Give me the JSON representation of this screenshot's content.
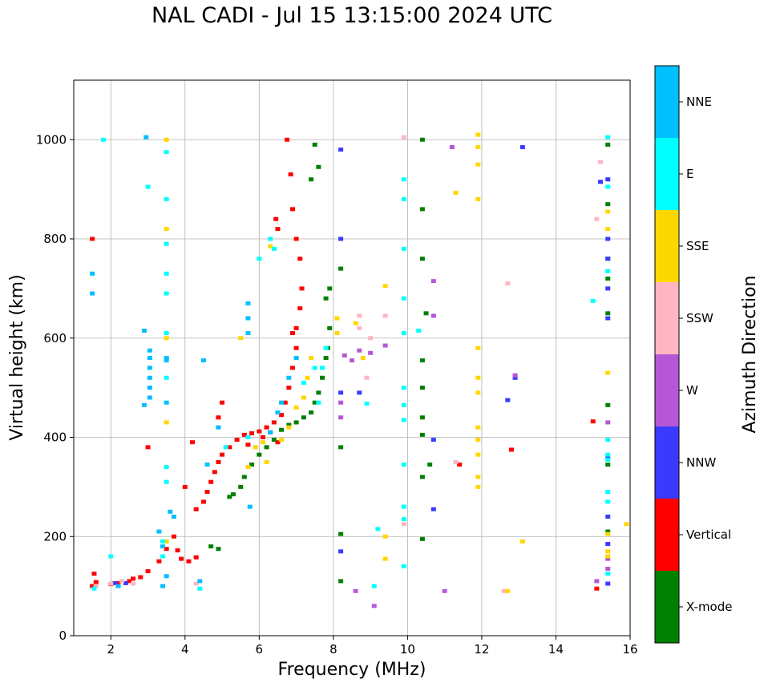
{
  "chart_data": {
    "type": "scatter",
    "title": "NAL CADI - Jul 15 13:15:00 2024 UTC",
    "xlabel": "Frequency (MHz)",
    "ylabel": "Virtual height (km)",
    "xlim": [
      1,
      16
    ],
    "ylim": [
      0,
      1120
    ],
    "xticks": [
      2,
      4,
      6,
      8,
      10,
      12,
      14,
      16
    ],
    "yticks": [
      0,
      200,
      400,
      600,
      800,
      1000
    ],
    "grid": true,
    "colorbar": {
      "label": "Azimuth Direction",
      "categories": [
        {
          "name": "X-mode",
          "color": "#008000"
        },
        {
          "name": "Vertical",
          "color": "#ff0000"
        },
        {
          "name": "NNW",
          "color": "#3a3aff"
        },
        {
          "name": "W",
          "color": "#b658d6"
        },
        {
          "name": "SSW",
          "color": "#ffb6c1"
        },
        {
          "name": "SSE",
          "color": "#ffd700"
        },
        {
          "name": "E",
          "color": "#00ffff"
        },
        {
          "name": "NNE",
          "color": "#00bfff"
        }
      ]
    },
    "series": [
      {
        "name": "Vertical",
        "points": [
          [
            1.5,
            100
          ],
          [
            1.6,
            108
          ],
          [
            1.55,
            125
          ],
          [
            2.0,
            104
          ],
          [
            2.2,
            106
          ],
          [
            2.5,
            110
          ],
          [
            2.8,
            118
          ],
          [
            3.0,
            130
          ],
          [
            3.3,
            150
          ],
          [
            3.5,
            175
          ],
          [
            3.7,
            200
          ],
          [
            3.8,
            172
          ],
          [
            3.9,
            155
          ],
          [
            4.1,
            150
          ],
          [
            4.3,
            158
          ],
          [
            4.3,
            255
          ],
          [
            4.5,
            270
          ],
          [
            4.6,
            290
          ],
          [
            4.7,
            310
          ],
          [
            4.8,
            330
          ],
          [
            4.9,
            350
          ],
          [
            5.0,
            365
          ],
          [
            5.2,
            380
          ],
          [
            5.4,
            395
          ],
          [
            5.6,
            405
          ],
          [
            5.8,
            408
          ],
          [
            6.0,
            412
          ],
          [
            6.2,
            420
          ],
          [
            6.4,
            430
          ],
          [
            6.6,
            445
          ],
          [
            6.7,
            470
          ],
          [
            6.8,
            500
          ],
          [
            6.9,
            540
          ],
          [
            7.0,
            580
          ],
          [
            7.0,
            620
          ],
          [
            7.1,
            660
          ],
          [
            7.15,
            700
          ],
          [
            7.1,
            760
          ],
          [
            7.0,
            800
          ],
          [
            6.9,
            860
          ],
          [
            6.85,
            930
          ],
          [
            6.75,
            1000
          ],
          [
            6.5,
            820
          ],
          [
            6.45,
            840
          ],
          [
            4.2,
            390
          ],
          [
            4.9,
            440
          ],
          [
            5.0,
            470
          ],
          [
            2.6,
            115
          ],
          [
            1.5,
            800
          ],
          [
            4.0,
            300
          ],
          [
            12.8,
            375
          ],
          [
            11.4,
            345
          ],
          [
            15.1,
            95
          ],
          [
            15.0,
            432
          ],
          [
            3.0,
            380
          ],
          [
            6.3,
            410
          ],
          [
            6.5,
            390
          ],
          [
            5.7,
            385
          ],
          [
            6.1,
            400
          ],
          [
            6.9,
            610
          ]
        ]
      },
      {
        "name": "X-mode",
        "points": [
          [
            5.2,
            280
          ],
          [
            5.3,
            285
          ],
          [
            5.5,
            300
          ],
          [
            5.6,
            320
          ],
          [
            5.8,
            345
          ],
          [
            6.0,
            365
          ],
          [
            6.2,
            380
          ],
          [
            6.4,
            395
          ],
          [
            6.6,
            415
          ],
          [
            6.8,
            425
          ],
          [
            7.0,
            430
          ],
          [
            7.2,
            440
          ],
          [
            7.4,
            450
          ],
          [
            7.5,
            470
          ],
          [
            7.6,
            490
          ],
          [
            7.7,
            520
          ],
          [
            7.8,
            560
          ],
          [
            7.85,
            580
          ],
          [
            7.9,
            620
          ],
          [
            7.8,
            680
          ],
          [
            7.9,
            700
          ],
          [
            4.7,
            180
          ],
          [
            4.9,
            175
          ],
          [
            10.4,
            1000
          ],
          [
            10.4,
            860
          ],
          [
            10.4,
            760
          ],
          [
            10.5,
            650
          ],
          [
            10.4,
            555
          ],
          [
            10.4,
            500
          ],
          [
            10.4,
            440
          ],
          [
            10.4,
            405
          ],
          [
            10.4,
            320
          ],
          [
            10.6,
            345
          ],
          [
            15.4,
            990
          ],
          [
            15.4,
            870
          ],
          [
            15.4,
            760
          ],
          [
            15.4,
            720
          ],
          [
            15.4,
            650
          ],
          [
            15.4,
            465
          ],
          [
            15.4,
            345
          ],
          [
            15.4,
            210
          ],
          [
            8.2,
            380
          ],
          [
            8.2,
            205
          ],
          [
            8.2,
            110
          ],
          [
            8.2,
            740
          ],
          [
            7.5,
            990
          ],
          [
            7.6,
            945
          ],
          [
            7.4,
            920
          ],
          [
            10.4,
            195
          ]
        ]
      },
      {
        "name": "NNW",
        "points": [
          [
            2.1,
            106
          ],
          [
            2.4,
            106
          ],
          [
            8.2,
            980
          ],
          [
            8.2,
            800
          ],
          [
            8.2,
            490
          ],
          [
            8.2,
            170
          ],
          [
            8.7,
            490
          ],
          [
            13.1,
            985
          ],
          [
            12.7,
            475
          ],
          [
            12.9,
            520
          ],
          [
            15.4,
            800
          ],
          [
            15.4,
            760
          ],
          [
            15.4,
            700
          ],
          [
            15.4,
            640
          ],
          [
            15.4,
            240
          ],
          [
            15.4,
            185
          ],
          [
            15.4,
            105
          ],
          [
            15.4,
            920
          ],
          [
            10.7,
            395
          ],
          [
            10.7,
            255
          ],
          [
            15.2,
            915
          ],
          [
            15.4,
            360
          ]
        ]
      },
      {
        "name": "W",
        "points": [
          [
            8.3,
            565
          ],
          [
            8.5,
            555
          ],
          [
            8.7,
            575
          ],
          [
            9.0,
            570
          ],
          [
            9.4,
            585
          ],
          [
            8.2,
            470
          ],
          [
            8.2,
            440
          ],
          [
            8.6,
            90
          ],
          [
            10.7,
            645
          ],
          [
            10.7,
            715
          ],
          [
            15.4,
            430
          ],
          [
            15.4,
            155
          ],
          [
            15.4,
            135
          ],
          [
            15.1,
            110
          ],
          [
            11.0,
            90
          ],
          [
            9.1,
            60
          ],
          [
            12.9,
            525
          ],
          [
            11.2,
            985
          ]
        ]
      },
      {
        "name": "SSW",
        "points": [
          [
            1.6,
            100
          ],
          [
            2.0,
            105
          ],
          [
            2.3,
            110
          ],
          [
            2.6,
            105
          ],
          [
            8.7,
            620
          ],
          [
            8.7,
            645
          ],
          [
            9.4,
            645
          ],
          [
            9.0,
            600
          ],
          [
            8.9,
            520
          ],
          [
            9.9,
            225
          ],
          [
            12.7,
            710
          ],
          [
            15.1,
            840
          ],
          [
            15.2,
            955
          ],
          [
            12.6,
            90
          ],
          [
            11.3,
            350
          ],
          [
            9.9,
            1005
          ],
          [
            4.3,
            105
          ]
        ]
      },
      {
        "name": "SSE",
        "points": [
          [
            3.5,
            1000
          ],
          [
            3.5,
            820
          ],
          [
            3.5,
            600
          ],
          [
            3.5,
            430
          ],
          [
            3.5,
            190
          ],
          [
            5.5,
            600
          ],
          [
            5.7,
            340
          ],
          [
            5.9,
            380
          ],
          [
            6.1,
            390
          ],
          [
            6.6,
            395
          ],
          [
            6.8,
            420
          ],
          [
            7.0,
            460
          ],
          [
            7.2,
            480
          ],
          [
            7.3,
            520
          ],
          [
            7.4,
            560
          ],
          [
            6.2,
            350
          ],
          [
            6.3,
            785
          ],
          [
            8.1,
            640
          ],
          [
            8.1,
            610
          ],
          [
            8.6,
            630
          ],
          [
            8.8,
            560
          ],
          [
            9.4,
            705
          ],
          [
            9.4,
            200
          ],
          [
            9.4,
            155
          ],
          [
            11.9,
            1010
          ],
          [
            11.9,
            985
          ],
          [
            11.9,
            950
          ],
          [
            11.9,
            880
          ],
          [
            11.9,
            580
          ],
          [
            11.9,
            520
          ],
          [
            11.9,
            490
          ],
          [
            11.9,
            420
          ],
          [
            11.9,
            395
          ],
          [
            11.9,
            365
          ],
          [
            11.9,
            320
          ],
          [
            11.9,
            300
          ],
          [
            13.1,
            190
          ],
          [
            12.7,
            90
          ],
          [
            15.4,
            855
          ],
          [
            15.4,
            820
          ],
          [
            15.4,
            530
          ],
          [
            15.4,
            205
          ],
          [
            15.4,
            170
          ],
          [
            15.4,
            160
          ],
          [
            15.9,
            225
          ],
          [
            11.3,
            893
          ]
        ]
      },
      {
        "name": "E",
        "points": [
          [
            1.55,
            95
          ],
          [
            1.8,
            1000
          ],
          [
            2.0,
            160
          ],
          [
            3.0,
            905
          ],
          [
            3.5,
            975
          ],
          [
            3.5,
            880
          ],
          [
            3.5,
            790
          ],
          [
            3.5,
            730
          ],
          [
            3.5,
            690
          ],
          [
            3.5,
            610
          ],
          [
            3.5,
            520
          ],
          [
            3.5,
            340
          ],
          [
            3.5,
            310
          ],
          [
            3.4,
            190
          ],
          [
            3.4,
            160
          ],
          [
            4.4,
            95
          ],
          [
            5.1,
            380
          ],
          [
            5.7,
            400
          ],
          [
            6.0,
            760
          ],
          [
            6.3,
            800
          ],
          [
            6.4,
            780
          ],
          [
            7.2,
            510
          ],
          [
            7.5,
            540
          ],
          [
            7.6,
            470
          ],
          [
            7.7,
            540
          ],
          [
            7.8,
            580
          ],
          [
            9.9,
            920
          ],
          [
            9.9,
            880
          ],
          [
            9.9,
            780
          ],
          [
            9.9,
            680
          ],
          [
            9.9,
            610
          ],
          [
            9.9,
            500
          ],
          [
            9.9,
            465
          ],
          [
            9.9,
            435
          ],
          [
            9.9,
            345
          ],
          [
            9.9,
            260
          ],
          [
            9.9,
            235
          ],
          [
            9.9,
            140
          ],
          [
            10.3,
            615
          ],
          [
            15.4,
            1005
          ],
          [
            15.4,
            905
          ],
          [
            15.4,
            735
          ],
          [
            15.4,
            395
          ],
          [
            15.4,
            365
          ],
          [
            15.4,
            355
          ],
          [
            15.4,
            290
          ],
          [
            15.4,
            270
          ],
          [
            15.4,
            125
          ],
          [
            15.0,
            675
          ],
          [
            9.1,
            100
          ],
          [
            8.9,
            468
          ],
          [
            9.2,
            215
          ]
        ]
      },
      {
        "name": "NNE",
        "points": [
          [
            1.5,
            730
          ],
          [
            1.5,
            690
          ],
          [
            3.05,
            480
          ],
          [
            3.05,
            500
          ],
          [
            3.05,
            520
          ],
          [
            3.05,
            540
          ],
          [
            3.05,
            560
          ],
          [
            3.05,
            575
          ],
          [
            2.9,
            465
          ],
          [
            2.9,
            615
          ],
          [
            3.5,
            560
          ],
          [
            3.5,
            555
          ],
          [
            3.5,
            470
          ],
          [
            3.4,
            100
          ],
          [
            3.3,
            210
          ],
          [
            3.4,
            180
          ],
          [
            3.5,
            120
          ],
          [
            3.7,
            240
          ],
          [
            4.5,
            555
          ],
          [
            4.4,
            110
          ],
          [
            5.7,
            610
          ],
          [
            5.7,
            640
          ],
          [
            5.7,
            670
          ],
          [
            5.75,
            260
          ],
          [
            6.3,
            410
          ],
          [
            6.5,
            450
          ],
          [
            6.6,
            470
          ],
          [
            6.8,
            520
          ],
          [
            7.0,
            560
          ],
          [
            2.2,
            100
          ],
          [
            3.6,
            250
          ],
          [
            4.6,
            345
          ],
          [
            4.9,
            420
          ],
          [
            2.95,
            1005
          ]
        ]
      }
    ]
  }
}
